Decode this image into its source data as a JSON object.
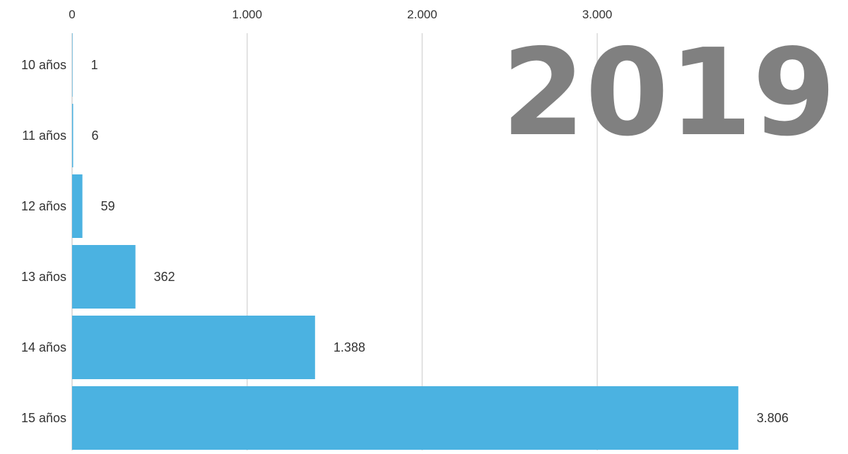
{
  "chart_data": {
    "type": "bar",
    "orientation": "horizontal",
    "categories": [
      "10 años",
      "11 años",
      "12 años",
      "13 años",
      "14 años",
      "15 años"
    ],
    "values": [
      1,
      6,
      59,
      362,
      1388,
      3806
    ],
    "value_labels": [
      "1",
      "6",
      "59",
      "362",
      "1.388",
      "3.806"
    ],
    "x_ticks": [
      0,
      1000,
      2000,
      3000
    ],
    "x_tick_labels": [
      "0",
      "1.000",
      "2.000",
      "3.000"
    ],
    "xlim": [
      0,
      4150
    ],
    "grid": true,
    "year_label": "2019",
    "colors": {
      "bar": "#4bb2e1",
      "grid": "#d9d9d9",
      "year": "#808080",
      "text": "#333333"
    }
  }
}
